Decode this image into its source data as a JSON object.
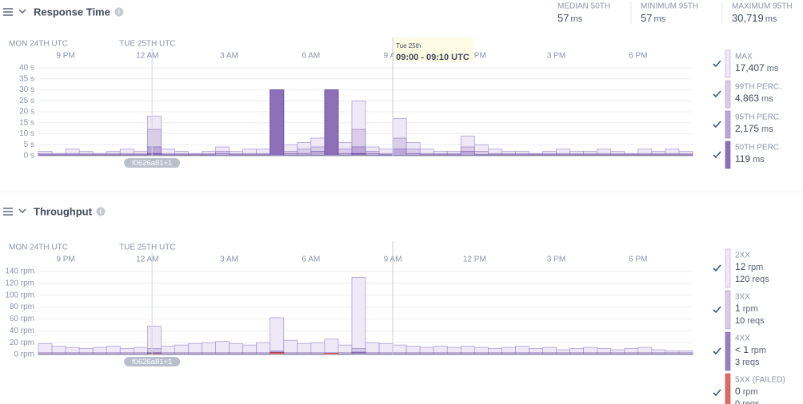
{
  "panels": [
    {
      "title": "Response Time",
      "stats": [
        {
          "label": "MEDIAN 50TH",
          "value": "57",
          "unit": "ms"
        },
        {
          "label": "MINIMUM 95TH",
          "value": "57",
          "unit": "ms"
        },
        {
          "label": "MAXIMUM 95TH",
          "value": "30,719",
          "unit": "ms"
        }
      ],
      "chart": {
        "type": "bar",
        "xlim": [
          20,
          44
        ],
        "day_ticks": [
          {
            "value": 20,
            "label": "MON 24TH UTC"
          },
          {
            "value": 24,
            "label": "TUE 25TH UTC"
          }
        ],
        "xticks": [
          {
            "value": 21,
            "label": "9 PM"
          },
          {
            "value": 24,
            "label": "12 AM"
          },
          {
            "value": 27,
            "label": "3 AM"
          },
          {
            "value": 30,
            "label": "6 AM"
          },
          {
            "value": 33,
            "label": "9 AM"
          },
          {
            "value": 36,
            "label": "12 PM"
          },
          {
            "value": 39,
            "label": "3 PM"
          },
          {
            "value": 42,
            "label": "6 PM"
          }
        ],
        "ylim": [
          0,
          40
        ],
        "yticks": [
          {
            "value": 0,
            "label": "0 s"
          },
          {
            "value": 5,
            "label": "5 s"
          },
          {
            "value": 10,
            "label": "10 s"
          },
          {
            "value": 15,
            "label": "15 s"
          },
          {
            "value": 20,
            "label": "20 s"
          },
          {
            "value": 25,
            "label": "25 s"
          },
          {
            "value": 30,
            "label": "30 s"
          },
          {
            "value": 35,
            "label": "35 s"
          },
          {
            "value": 40,
            "label": "40 s"
          }
        ],
        "x": [
          20,
          20.5,
          21,
          21.5,
          22,
          22.5,
          23,
          23.5,
          24,
          24.5,
          25,
          25.5,
          26,
          26.5,
          27,
          27.5,
          28,
          28.5,
          29,
          29.5,
          30,
          30.5,
          31,
          31.5,
          32,
          32.5,
          33,
          33.5,
          34,
          34.5,
          35,
          35.5,
          36,
          36.5,
          37,
          37.5,
          38,
          38.5,
          39,
          39.5,
          40,
          40.5,
          41,
          41.5,
          42,
          42.5,
          43,
          43.5
        ],
        "bin_width": 0.5,
        "series": [
          {
            "name": "MAX",
            "color": "#efe9f7",
            "stroke": "#a893cc",
            "summary": [
              "17,407",
              "ms"
            ],
            "values": [
              2,
              1,
              3,
              2,
              1,
              2,
              3,
              2,
              18,
              3,
              2,
              1,
              2,
              4,
              2,
              3,
              3,
              30,
              5,
              6,
              8,
              30,
              6,
              25,
              4,
              3,
              17,
              6,
              3,
              2,
              2,
              9,
              5,
              3,
              2,
              2,
              1,
              2,
              3,
              2,
              2,
              3,
              2,
              1,
              3,
              2,
              3,
              2
            ]
          },
          {
            "name": "99TH PERC.",
            "color": "#d9cdea",
            "stroke": "#9a82c2",
            "summary": [
              "4,863",
              "ms"
            ],
            "values": [
              1,
              1,
              1,
              1,
              1,
              1,
              1,
              1,
              12,
              1,
              1,
              1,
              1,
              2,
              1,
              1,
              1,
              30,
              2,
              3,
              4,
              30,
              3,
              12,
              2,
              1,
              8,
              3,
              1,
              1,
              1,
              4,
              2,
              1,
              1,
              1,
              1,
              1,
              1,
              1,
              1,
              1,
              1,
              1,
              1,
              1,
              1,
              1
            ]
          },
          {
            "name": "95TH PERC.",
            "color": "#bba7d8",
            "stroke": "#8567b3",
            "summary": [
              "2,175",
              "ms"
            ],
            "values": [
              0.5,
              0.5,
              0.5,
              0.5,
              0.5,
              0.5,
              0.5,
              0.5,
              4,
              0.5,
              0.5,
              0.5,
              0.5,
              1,
              0.5,
              0.5,
              0.5,
              30,
              1,
              1,
              2,
              30,
              1,
              4,
              1,
              0.5,
              3,
              1,
              0.5,
              0.5,
              0.5,
              2,
              0.5,
              0.5,
              0.5,
              0.5,
              0.5,
              0.5,
              0.5,
              0.5,
              0.5,
              0.5,
              0.5,
              0.5,
              0.5,
              0.5,
              0.5,
              0.5
            ]
          },
          {
            "name": "50TH PERC.",
            "color": "#8e70b9",
            "stroke": "#654899",
            "summary": [
              "119",
              "ms"
            ],
            "values": [
              0.2,
              0.2,
              0.2,
              0.2,
              0.2,
              0.2,
              0.2,
              0.2,
              1,
              0.2,
              0.2,
              0.2,
              0.2,
              0.2,
              0.2,
              0.2,
              0.2,
              30,
              0.2,
              0.2,
              0.2,
              30,
              0.2,
              1,
              0.2,
              0.2,
              0.2,
              0.2,
              0.2,
              0.2,
              0.2,
              0.2,
              0.2,
              0.2,
              0.2,
              0.2,
              0.2,
              0.2,
              0.2,
              0.2,
              0.2,
              0.2,
              0.2,
              0.2,
              0.2,
              0.2,
              0.2,
              0.2
            ]
          }
        ],
        "annotation": {
          "x": 24.17,
          "label": "f0626a81+1"
        },
        "cursor": 33,
        "tooltip": {
          "title": "Tue 25th",
          "text": "09:00 - 09:10 UTC"
        }
      }
    },
    {
      "title": "Throughput",
      "chart": {
        "type": "bar",
        "xlim": [
          20,
          44
        ],
        "day_ticks": [
          {
            "value": 20,
            "label": "MON 24TH UTC"
          },
          {
            "value": 24,
            "label": "TUE 25TH UTC"
          }
        ],
        "xticks": [
          {
            "value": 21,
            "label": "9 PM"
          },
          {
            "value": 24,
            "label": "12 AM"
          },
          {
            "value": 27,
            "label": "3 AM"
          },
          {
            "value": 30,
            "label": "6 AM"
          },
          {
            "value": 33,
            "label": "9 AM"
          },
          {
            "value": 36,
            "label": "12 PM"
          },
          {
            "value": 39,
            "label": "3 PM"
          },
          {
            "value": 42,
            "label": "6 PM"
          }
        ],
        "ylim": [
          0,
          140
        ],
        "yticks": [
          {
            "value": 0,
            "label": "0 rpm"
          },
          {
            "value": 20,
            "label": "20 rpm"
          },
          {
            "value": 40,
            "label": "40 rpm"
          },
          {
            "value": 60,
            "label": "60 rpm"
          },
          {
            "value": 80,
            "label": "80 rpm"
          },
          {
            "value": 100,
            "label": "100 rpm"
          },
          {
            "value": 120,
            "label": "120 rpm"
          },
          {
            "value": 140,
            "label": "140 rpm"
          }
        ],
        "x": [
          20,
          20.5,
          21,
          21.5,
          22,
          22.5,
          23,
          23.5,
          24,
          24.5,
          25,
          25.5,
          26,
          26.5,
          27,
          27.5,
          28,
          28.5,
          29,
          29.5,
          30,
          30.5,
          31,
          31.5,
          32,
          32.5,
          33,
          33.5,
          34,
          34.5,
          35,
          35.5,
          36,
          36.5,
          37,
          37.5,
          38,
          38.5,
          39,
          39.5,
          40,
          40.5,
          41,
          41.5,
          42,
          42.5,
          43,
          43.5
        ],
        "bin_width": 0.5,
        "series": [
          {
            "name": "2XX",
            "color": "#efe9f7",
            "stroke": "#a893cc",
            "summary": [
              "12",
              "rpm"
            ],
            "summary2": [
              "120",
              "reqs"
            ],
            "values": [
              18,
              14,
              12,
              10,
              12,
              14,
              10,
              12,
              48,
              14,
              16,
              18,
              20,
              22,
              18,
              16,
              20,
              62,
              24,
              18,
              20,
              26,
              16,
              130,
              20,
              18,
              16,
              14,
              12,
              14,
              12,
              14,
              12,
              10,
              12,
              14,
              10,
              12,
              8,
              10,
              12,
              10,
              8,
              10,
              12,
              8,
              6,
              6
            ]
          },
          {
            "name": "3XX",
            "color": "#d9cdea",
            "stroke": "#9a82c2",
            "summary": [
              "1",
              "rpm"
            ],
            "summary2": [
              "10",
              "reqs"
            ],
            "values": [
              3,
              3,
              3,
              3,
              3,
              3,
              3,
              3,
              10,
              3,
              3,
              3,
              3,
              3,
              3,
              3,
              3,
              6,
              3,
              3,
              3,
              3,
              3,
              10,
              3,
              3,
              3,
              3,
              3,
              3,
              3,
              3,
              3,
              3,
              3,
              3,
              3,
              3,
              3,
              3,
              3,
              3,
              3,
              3,
              3,
              3,
              3,
              3
            ]
          },
          {
            "name": "4XX",
            "color": "#9a80c2",
            "stroke": "#6f52a3",
            "summary": [
              "< 1",
              "rpm"
            ],
            "summary2": [
              "3",
              "reqs"
            ],
            "values": [
              1,
              1,
              1,
              1,
              1,
              1,
              1,
              1,
              3,
              1,
              1,
              1,
              1,
              1,
              1,
              1,
              1,
              4,
              1,
              1,
              1,
              1,
              1,
              4,
              1,
              1,
              1,
              1,
              1,
              1,
              1,
              1,
              1,
              1,
              1,
              1,
              1,
              1,
              1,
              1,
              1,
              1,
              1,
              1,
              1,
              1,
              1,
              1
            ]
          },
          {
            "name": "5XX (FAILED)",
            "color": "#e06a66",
            "stroke": "#c9302c",
            "summary": [
              "0",
              "rpm"
            ],
            "summary2": [
              "0",
              "reqs"
            ],
            "values": [
              0,
              0,
              0,
              0,
              0,
              0,
              0,
              0,
              1,
              0,
              0,
              0,
              0,
              0,
              0,
              0,
              0,
              3,
              0,
              0,
              0,
              2,
              0,
              0,
              0,
              0,
              0,
              0,
              0,
              0,
              0,
              0,
              0,
              0,
              0,
              0,
              0,
              0,
              0,
              0,
              0,
              0,
              0,
              0,
              0,
              0,
              0,
              0
            ]
          }
        ],
        "annotation": {
          "x": 24.17,
          "label": "f0626a81+1"
        },
        "cursor": 33
      }
    }
  ]
}
